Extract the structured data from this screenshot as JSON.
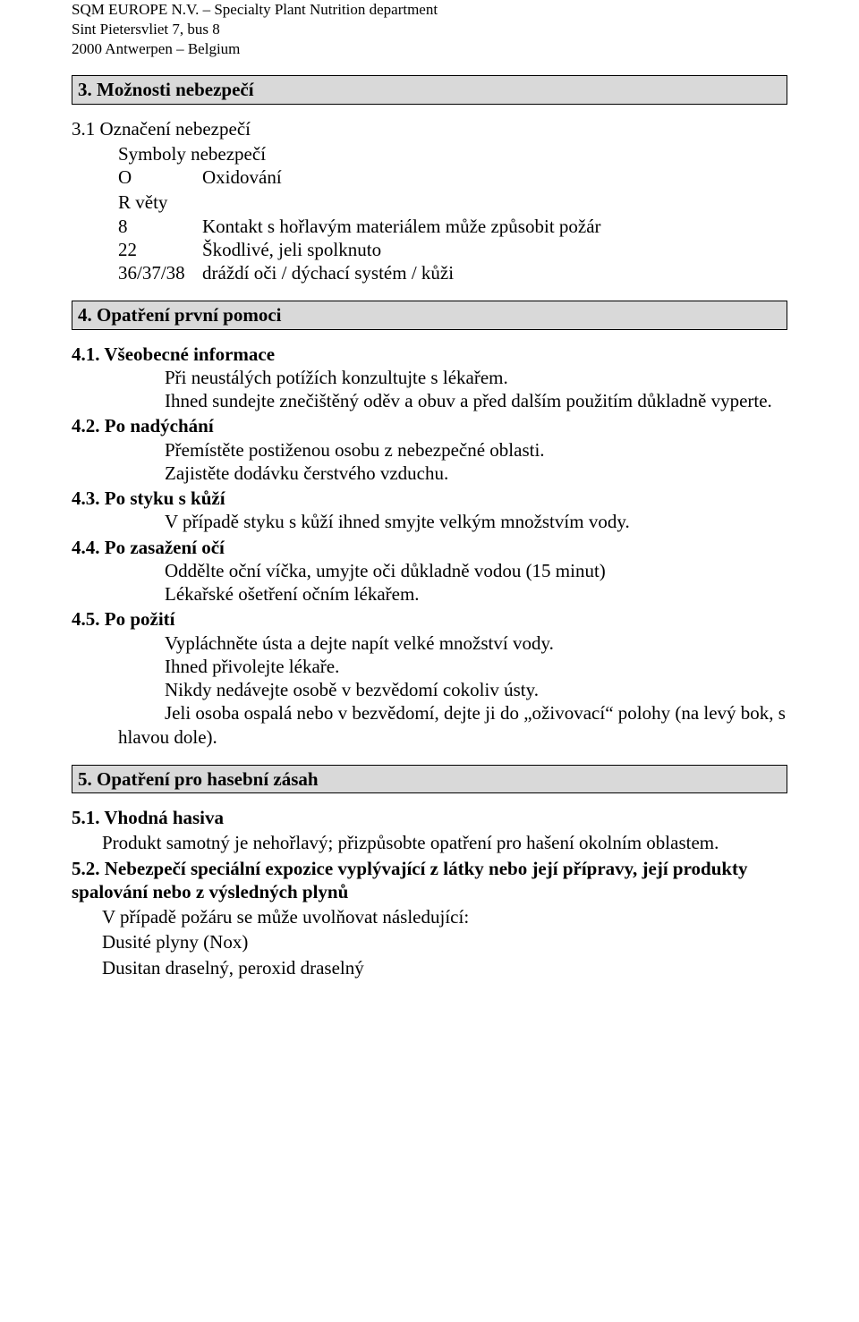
{
  "header": {
    "line1": "SQM EUROPE N.V. – Specialty Plant Nutrition department",
    "line2": "Sint Pietersvliet 7, bus 8",
    "line3": "2000 Antwerpen – Belgium"
  },
  "section3": {
    "title": "3. Možnosti nebezpečí",
    "sub31": "3.1 Označení nebezpečí",
    "symbols_label": "Symboly nebezpečí",
    "sym_o_code": "O",
    "sym_o_text": "Oxidování",
    "r_label": "R věty",
    "r8_code": "8",
    "r8_text": "Kontakt s hořlavým materiálem může způsobit požár",
    "r22_code": "22",
    "r22_text": "Škodlivé, jeli spolknuto",
    "r363738_code": "36/37/38",
    "r363738_text": "dráždí oči / dýchací systém / kůži"
  },
  "section4": {
    "title": "4. Opatření první pomoci",
    "s41_title": "4.1. Všeobecné informace",
    "s41_l1": "Při neustálých potížích konzultujte s lékařem.",
    "s41_l2": "Ihned sundejte znečištěný oděv a obuv a před dalším použitím důkladně vyperte.",
    "s42_title": "4.2. Po nadýchání",
    "s42_l1": "Přemístěte postiženou osobu z nebezpečné oblasti.",
    "s42_l2": "Zajistěte dodávku čerstvého vzduchu.",
    "s43_title": "4.3. Po styku s kůží",
    "s43_l1": "V případě styku s kůží ihned smyjte velkým množstvím vody.",
    "s44_title": "4.4. Po zasažení očí",
    "s44_l1": "Oddělte oční víčka, umyjte oči důkladně vodou (15 minut)",
    "s44_l2": "Lékařské ošetření očním lékařem.",
    "s45_title": "4.5. Po požití",
    "s45_l1": "Vypláchněte ústa a dejte napít velké množství vody.",
    "s45_l2": "Ihned přivolejte lékaře.",
    "s45_l3": "Nikdy nedávejte osobě v bezvědomí cokoliv ústy.",
    "s45_l4": "Jeli osoba ospalá nebo v bezvědomí, dejte ji do „oživovací“ polohy (na levý bok, s hlavou dole)."
  },
  "section5": {
    "title": "5. Opatření pro hasební zásah",
    "s51_title": "5.1. Vhodná hasiva",
    "s51_l1": "Produkt samotný je nehořlavý; přizpůsobte opatření pro hašení okolním oblastem.",
    "s52_title": "5.2. Nebezpečí speciální expozice vyplývající z látky nebo její přípravy, její produkty spalování nebo z výsledných plynů",
    "s52_l1": "V případě požáru se může uvolňovat následující:",
    "s52_l2": "Dusité plyny (Nox)",
    "s52_l3": "Dusitan draselný, peroxid draselný"
  }
}
